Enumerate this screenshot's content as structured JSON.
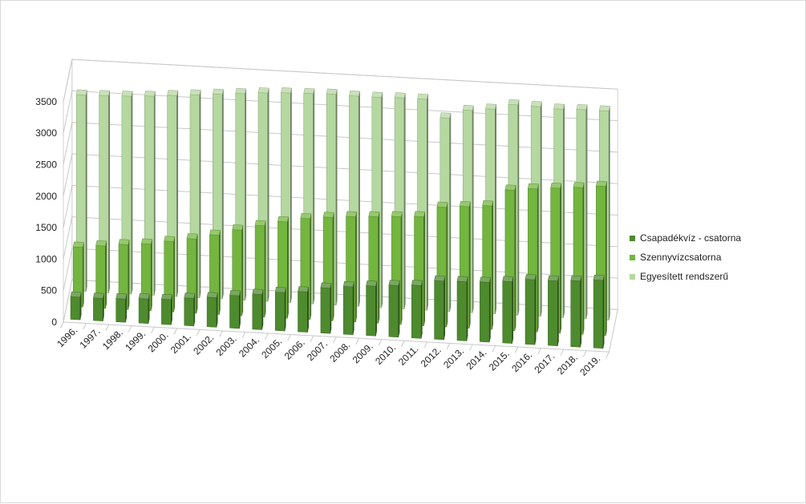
{
  "chart_data": {
    "type": "bar",
    "variant": "3d-column",
    "title": "",
    "xlabel": "",
    "ylabel": "",
    "ylim": [
      0,
      3500
    ],
    "yticks": [
      0,
      500,
      1000,
      1500,
      2000,
      2500,
      3000,
      3500
    ],
    "grid": true,
    "legend_position": "right",
    "categories": [
      "1996.",
      "1997.",
      "1998.",
      "1999.",
      "2000.",
      "2001.",
      "2002.",
      "2003.",
      "2004.",
      "2005.",
      "2006.",
      "2007.",
      "2008.",
      "2009.",
      "2010.",
      "2011.",
      "2012.",
      "2013.",
      "2014.",
      "2015.",
      "2016.",
      "2017.",
      "2018.",
      "2019."
    ],
    "series": [
      {
        "name": "Csapadékvíz - csatorna",
        "color": "#4e8a2e",
        "values": [
          360,
          360,
          370,
          390,
          400,
          440,
          470,
          520,
          560,
          610,
          640,
          720,
          760,
          790,
          820,
          840,
          930,
          940,
          950,
          980,
          1030,
          1030,
          1050,
          1080
        ]
      },
      {
        "name": "Szennyvízcsatorna",
        "color": "#73b53f",
        "values": [
          950,
          990,
          1030,
          1060,
          1120,
          1180,
          1260,
          1360,
          1450,
          1530,
          1600,
          1640,
          1670,
          1690,
          1710,
          1730,
          1900,
          1930,
          1960,
          2230,
          2270,
          2300,
          2330,
          2370
        ]
      },
      {
        "name": "Egyesített rendszerű",
        "color": "#b5d7a0",
        "values": [
          3120,
          3130,
          3140,
          3160,
          3190,
          3220,
          3250,
          3280,
          3310,
          3330,
          3340,
          3350,
          3340,
          3340,
          3350,
          3350,
          3070,
          3210,
          3250,
          3340,
          3330,
          3310,
          3320,
          3320
        ]
      }
    ]
  }
}
